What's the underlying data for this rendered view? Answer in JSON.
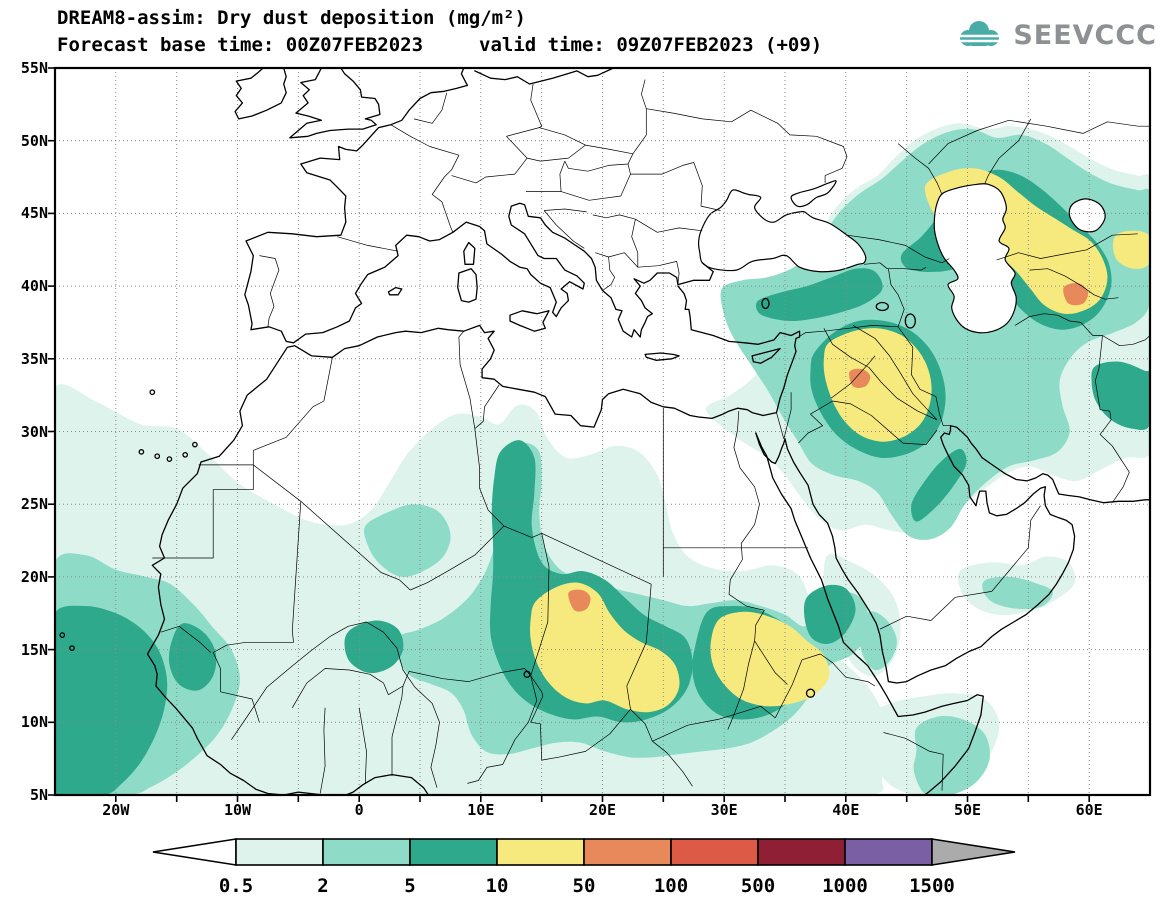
{
  "header": {
    "title": "DREAM8-assim: Dry dust deposition (mg/m²)",
    "base_time": "Forecast base time: 00Z07FEB2023",
    "valid_time": "valid time: 09Z07FEB2023 (+09)",
    "logo_text": "SEEVCCC"
  },
  "map": {
    "lat_labels": [
      "55N",
      "50N",
      "45N",
      "40N",
      "35N",
      "30N",
      "25N",
      "20N",
      "15N",
      "10N",
      "5N"
    ],
    "lon_labels": [
      "20W",
      "10W",
      "0",
      "10E",
      "20E",
      "30E",
      "40E",
      "50E",
      "60E"
    ]
  },
  "legend": {
    "values": [
      "0.5",
      "2",
      "5",
      "10",
      "50",
      "100",
      "500",
      "1000",
      "1500"
    ],
    "colors": [
      "#ffffff",
      "#ddf3ec",
      "#8edcc8",
      "#2fa98c",
      "#f6e97e",
      "#e8895c",
      "#dd5a47",
      "#8e1f35",
      "#7b5fa4",
      "#ababab"
    ]
  }
}
